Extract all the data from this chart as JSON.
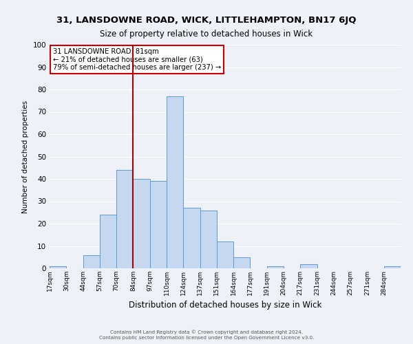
{
  "title": "31, LANSDOWNE ROAD, WICK, LITTLEHAMPTON, BN17 6JQ",
  "subtitle": "Size of property relative to detached houses in Wick",
  "xlabel": "Distribution of detached houses by size in Wick",
  "ylabel": "Number of detached properties",
  "bin_labels": [
    "17sqm",
    "30sqm",
    "44sqm",
    "57sqm",
    "70sqm",
    "84sqm",
    "97sqm",
    "110sqm",
    "124sqm",
    "137sqm",
    "151sqm",
    "164sqm",
    "177sqm",
    "191sqm",
    "204sqm",
    "217sqm",
    "231sqm",
    "244sqm",
    "257sqm",
    "271sqm",
    "284sqm"
  ],
  "bar_values": [
    1,
    0,
    6,
    24,
    44,
    40,
    39,
    77,
    27,
    26,
    12,
    5,
    0,
    1,
    0,
    2,
    0,
    0,
    0,
    0,
    1
  ],
  "bar_color": "#c5d8f0",
  "bar_edge_color": "#5b9bd5",
  "property_bin_index": 5,
  "vline_color": "#aa0000",
  "annotation_text": "31 LANSDOWNE ROAD: 81sqm\n← 21% of detached houses are smaller (63)\n79% of semi-detached houses are larger (237) →",
  "annotation_box_facecolor": "#ffffff",
  "annotation_box_edgecolor": "#cc0000",
  "ylim": [
    0,
    100
  ],
  "yticks": [
    0,
    10,
    20,
    30,
    40,
    50,
    60,
    70,
    80,
    90,
    100
  ],
  "background_color": "#eef2f8",
  "grid_color": "#ffffff",
  "footer_line1": "Contains HM Land Registry data © Crown copyright and database right 2024.",
  "footer_line2": "Contains public sector information licensed under the Open Government Licence v3.0."
}
